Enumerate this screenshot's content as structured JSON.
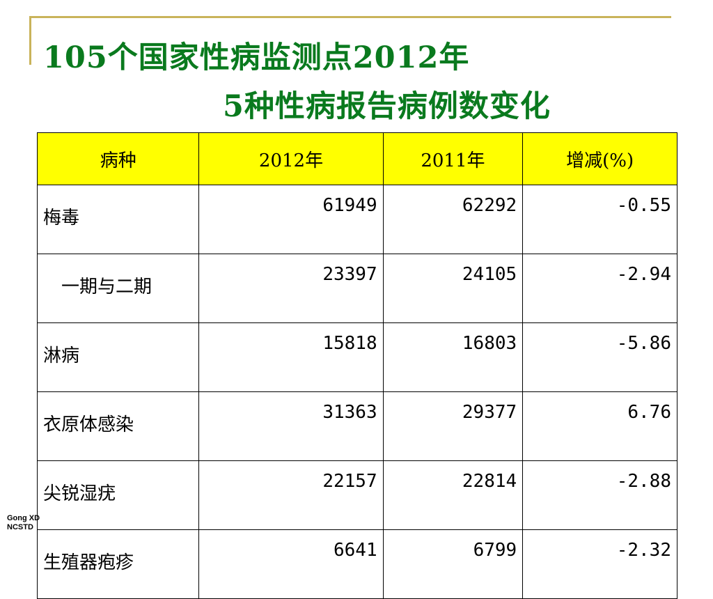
{
  "slide": {
    "title_line1": "105个国家性病监测点2012年",
    "title_line2": "5种性病报告病例数变化"
  },
  "table": {
    "headers": [
      "病种",
      "2012年",
      "2011年",
      "增减(%)"
    ],
    "rows": [
      {
        "name": "梅毒",
        "y2012": "61949",
        "y2011": "62292",
        "change": "-0.55"
      },
      {
        "name": "　一期与二期",
        "y2012": "23397",
        "y2011": "24105",
        "change": "-2.94"
      },
      {
        "name": "淋病",
        "y2012": "15818",
        "y2011": "16803",
        "change": "-5.86"
      },
      {
        "name": "衣原体感染",
        "y2012": "31363",
        "y2011": "29377",
        "change": "6.76"
      },
      {
        "name": "尖锐湿疣",
        "y2012": "22157",
        "y2011": "22814",
        "change": "-2.88"
      },
      {
        "name": "生殖器疱疹",
        "y2012": "6641",
        "y2011": "6799",
        "change": "-2.32"
      }
    ]
  },
  "footer": {
    "line1": "Gong XD",
    "line2": "NCSTD"
  },
  "colors": {
    "title": "#0a7a1e",
    "header_bg": "#ffff00",
    "frame": "#c9b35a"
  }
}
